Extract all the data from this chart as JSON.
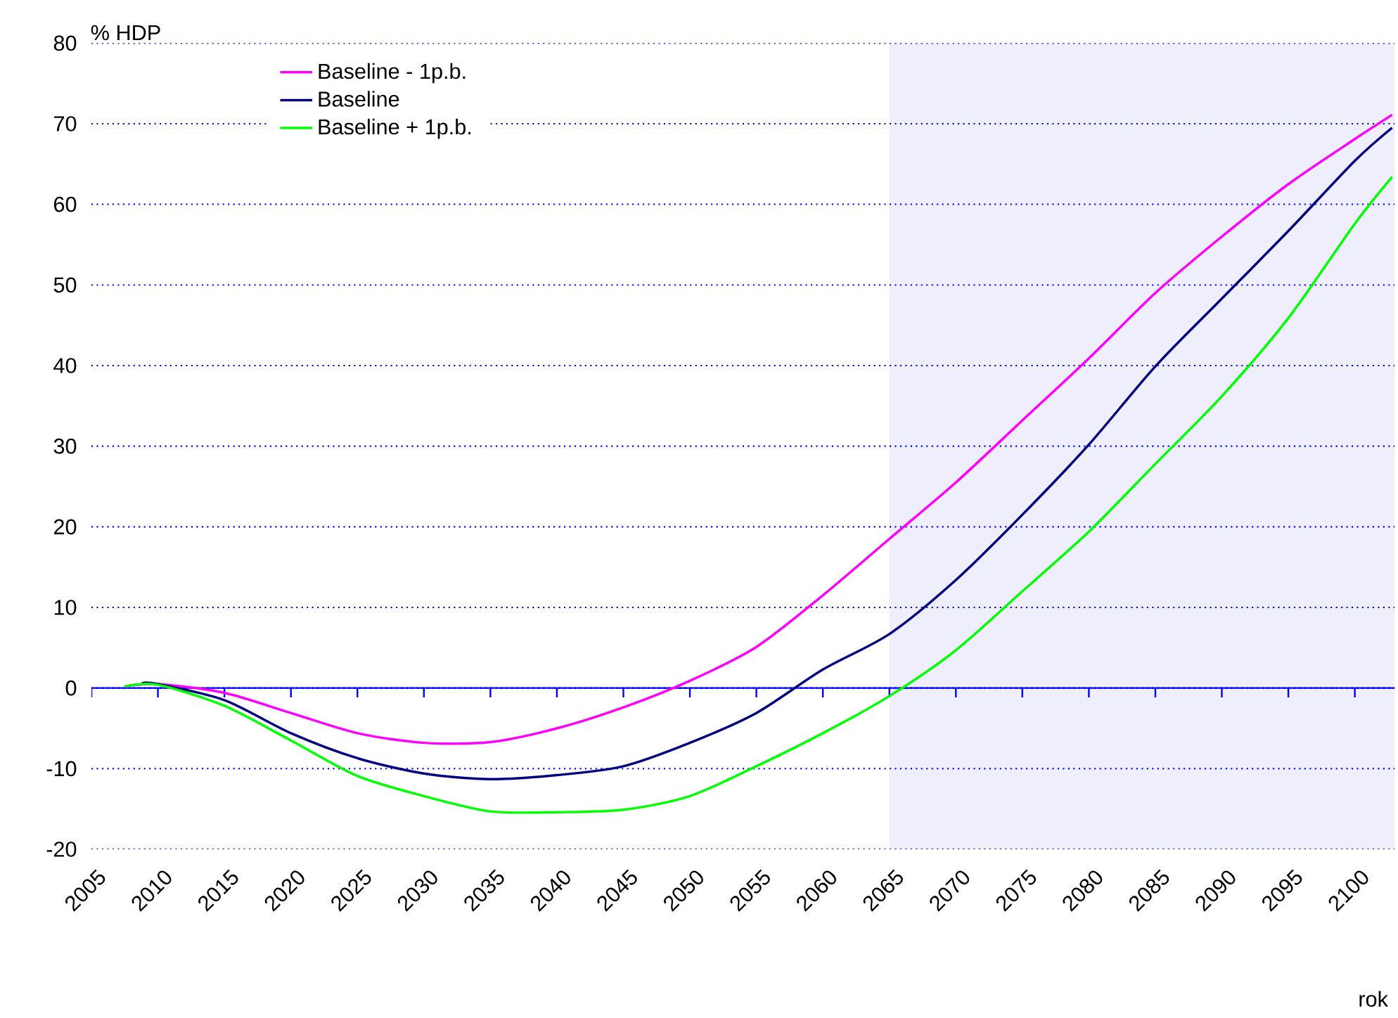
{
  "chart_data": {
    "type": "line",
    "xlabel": "rok",
    "ylabel": "% HDP",
    "xlim": [
      2005,
      2103
    ],
    "ylim": [
      -20,
      80
    ],
    "xticks": [
      2005,
      2010,
      2015,
      2020,
      2025,
      2030,
      2035,
      2040,
      2045,
      2050,
      2055,
      2060,
      2065,
      2070,
      2075,
      2080,
      2085,
      2090,
      2095,
      2100
    ],
    "yticks": [
      -20,
      -10,
      0,
      10,
      20,
      30,
      40,
      50,
      60,
      70,
      80
    ],
    "grid": "y",
    "legend": "top left",
    "line_style": "solid",
    "marker": "none",
    "bands": [
      {
        "axis": "x",
        "from": 2065,
        "to": 2103,
        "color": "#eeeefc"
      }
    ],
    "ref_lines": [
      {
        "axis": "y",
        "value": 0,
        "color": "#0000ff",
        "line_style": "solid"
      }
    ],
    "x": [
      2007.5,
      2010,
      2015,
      2020,
      2025,
      2030,
      2035,
      2040,
      2045,
      2050,
      2055,
      2060,
      2065,
      2070,
      2075,
      2080,
      2085,
      2090,
      2095,
      2100,
      2102.8
    ],
    "series": [
      {
        "name": "Baseline - 1p.b.",
        "color": "#ff00ff",
        "values": [
          0.2,
          0.5,
          -0.6,
          -3.1,
          -5.6,
          -6.8,
          -6.7,
          -5.0,
          -2.4,
          0.9,
          5.1,
          11.5,
          18.5,
          25.5,
          33.2,
          40.9,
          49.0,
          56.0,
          62.5,
          68.1,
          71.1
        ]
      },
      {
        "name": "Baseline",
        "color": "#000080",
        "x": [
          2008.8,
          2010,
          2015,
          2020,
          2025,
          2030,
          2035,
          2040,
          2045,
          2050,
          2055,
          2060,
          2065,
          2070,
          2075,
          2080,
          2085,
          2090,
          2095,
          2100,
          2102.8
        ],
        "values": [
          0.6,
          0.5,
          -1.5,
          -5.6,
          -8.7,
          -10.6,
          -11.3,
          -10.8,
          -9.7,
          -6.8,
          -3.1,
          2.3,
          6.7,
          13.4,
          21.5,
          30.2,
          39.9,
          48.3,
          56.7,
          65.4,
          69.5
        ]
      },
      {
        "name": "Baseline + 1p.b.",
        "color": "#00ff00",
        "values": [
          0.2,
          0.4,
          -2.2,
          -6.5,
          -10.9,
          -13.4,
          -15.3,
          -15.4,
          -15.1,
          -13.4,
          -9.7,
          -5.6,
          -1.0,
          4.7,
          12.0,
          19.4,
          27.8,
          36.2,
          45.9,
          57.6,
          63.4
        ]
      }
    ]
  }
}
